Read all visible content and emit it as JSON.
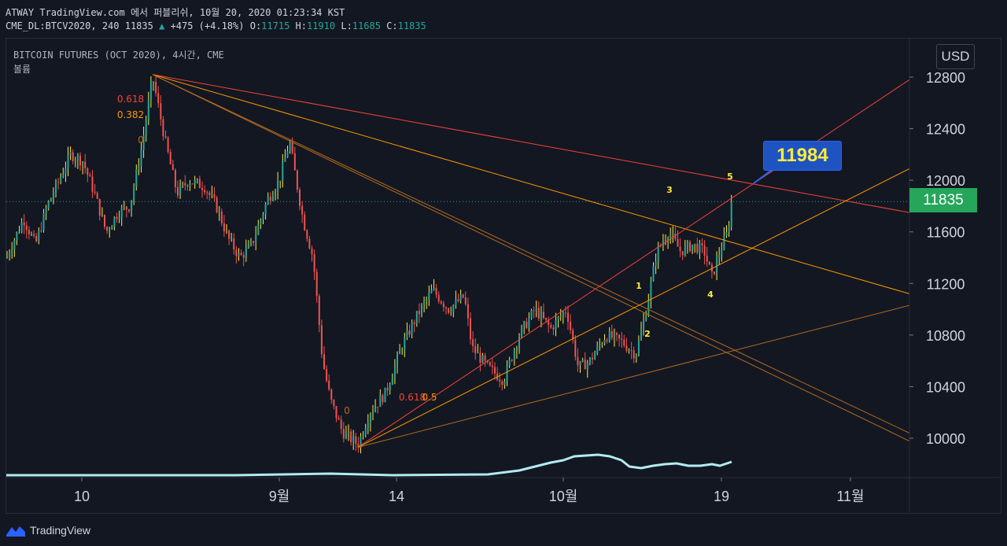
{
  "header": {
    "line1": "ATWAY TradingView.com 에서 퍼블리쉬, 10월 20, 2020 01:23:34 KST",
    "symbol": "CME_DL:BTCV2020, 240",
    "last": "11835",
    "change_arrow": "▲",
    "change": "+475 (+4.18%)",
    "o_label": "O:",
    "o_value": "11715",
    "h_label": "H:",
    "h_value": "11910",
    "l_label": "L:",
    "l_value": "11685",
    "c_label": "C:",
    "c_value": "11835"
  },
  "legend": {
    "title": "BITCOIN FUTURES (OCT 2020), 4시간, CME",
    "volume_label": "볼륨"
  },
  "currency_button": "USD",
  "last_price_tag": "11835",
  "callout": "11984",
  "logo_text": "TradingView",
  "colors": {
    "background": "#131722",
    "up": "#26a69a",
    "down": "#ef5350",
    "wick_up": "#ffeb3b",
    "fib_red": "#f44336",
    "fib_orange": "#ff9800",
    "fib_brown": "#b36b1d",
    "volume": "#b2ebf2",
    "price_tag": "#26a65b",
    "callout": "#1e53c2",
    "wave": "#ffeb3b"
  },
  "chart_data": {
    "type": "candlestick",
    "y_ticks": [
      12800,
      12400,
      12000,
      11600,
      11200,
      10800,
      10400,
      10000
    ],
    "x_ticks": [
      "10",
      "9월",
      "14",
      "10월",
      "19",
      "11월"
    ],
    "y_range": [
      9760,
      13100
    ],
    "last_price": 11835,
    "callout_price": 11984,
    "fib_labels": [
      "0.618",
      "0.382",
      "0",
      "0.618",
      "0.5",
      "0"
    ],
    "wave_labels": [
      "1",
      "2",
      "3",
      "4",
      "5"
    ],
    "anchors": [
      {
        "name": "aug-high",
        "date": "2020-08-17",
        "price": 12820
      },
      {
        "name": "sep-low",
        "date": "2020-09-08",
        "price": 9930
      },
      {
        "name": "sep-swing",
        "date": "2020-09-01",
        "price": 12300
      }
    ]
  }
}
